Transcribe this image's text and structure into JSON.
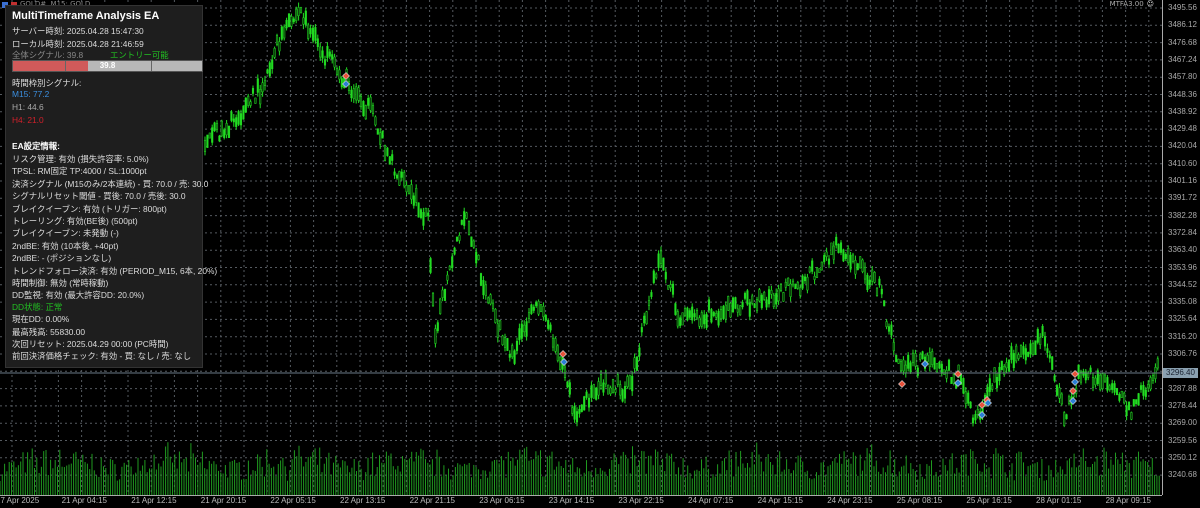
{
  "window": {
    "symbol_title": "GOLD#, M15:  GOLD",
    "ea_name": "MTFA3.00"
  },
  "colors": {
    "bull": "#22dd22",
    "volume": "#1f9a1f",
    "grid": "#555a60",
    "panel_bg": "#1e1e1e",
    "buy_marker": "#2a7fd4",
    "sell_marker": "#e8513a",
    "m15": "#3b8fe0",
    "h4": "#d0202a",
    "ok_green": "#22c022"
  },
  "price_axis": [
    "3495.56",
    "3486.12",
    "3476.68",
    "3467.24",
    "3457.80",
    "3448.36",
    "3438.92",
    "3429.48",
    "3420.04",
    "3410.60",
    "3401.16",
    "3391.72",
    "3382.28",
    "3372.84",
    "3363.40",
    "3353.96",
    "3344.52",
    "3335.08",
    "3325.64",
    "3316.20",
    "3306.76",
    "3296.40",
    "3287.88",
    "3278.44",
    "3269.00",
    "3259.56",
    "3250.12",
    "3240.68"
  ],
  "current_price": "3296.40",
  "time_axis": [
    "17 Apr 2025",
    "21 Apr 04:15",
    "21 Apr 12:15",
    "21 Apr 20:15",
    "22 Apr 05:15",
    "22 Apr 13:15",
    "22 Apr 21:15",
    "23 Apr 06:15",
    "23 Apr 14:15",
    "23 Apr 22:15",
    "24 Apr 07:15",
    "24 Apr 15:15",
    "24 Apr 23:15",
    "25 Apr 08:15",
    "25 Apr 16:15",
    "28 Apr 01:15",
    "28 Apr 09:15"
  ],
  "panel": {
    "title": "MultiTimeframe Analysis EA",
    "server_time": "サーバー時刻: 2025.04.28 15:47:30",
    "local_time": "ローカル時刻: 2025.04.28 21:46:59",
    "overall_signal": "全体シグナル: 39.8",
    "entry_status": "エントリー可能",
    "gauge_value": "39.8",
    "gauge_percent": 39.8,
    "tf_header": "時間枠別シグナル:",
    "m15": "M15: 77.2",
    "h1": "H1: 44.6",
    "h4": "H4: 21.0",
    "settings_header": "EA設定情報:",
    "settings": [
      "リスク管理: 有効 (損失許容率: 5.0%)",
      "TPSL: RM固定 TP:4000 / SL:1000pt",
      "決済シグナル (M15のみ/2本連続) - 買: 70.0 / 売: 30.0",
      "シグナルリセット閾値 - 買後: 70.0 / 売後: 30.0",
      "ブレイクイーブン: 有効 (トリガー: 800pt)",
      "トレーリング: 有効(BE後) (500pt)",
      "ブレイクイーブン: 未発動 (-)",
      "2ndBE: 有効 (10本後, +40pt)",
      "2ndBE: - (ポジションなし)",
      "トレンドフォロー決済: 有効 (PERIOD_M15, 6本, 20%)",
      "時間制御: 無効 (常時稼動)",
      "DD監視: 有効 (最大許容DD: 20.0%)"
    ],
    "dd_status": "DD状態: 正常",
    "current_dd": "現在DD: 0.00%",
    "max_balance": "最高残高: 55830.00",
    "next_reset": "次回リセット: 2025.04.29 00:00 (PC時間)",
    "last_check": "前回決済価格チェック: 有効 - 買: なし / 売: なし"
  }
}
